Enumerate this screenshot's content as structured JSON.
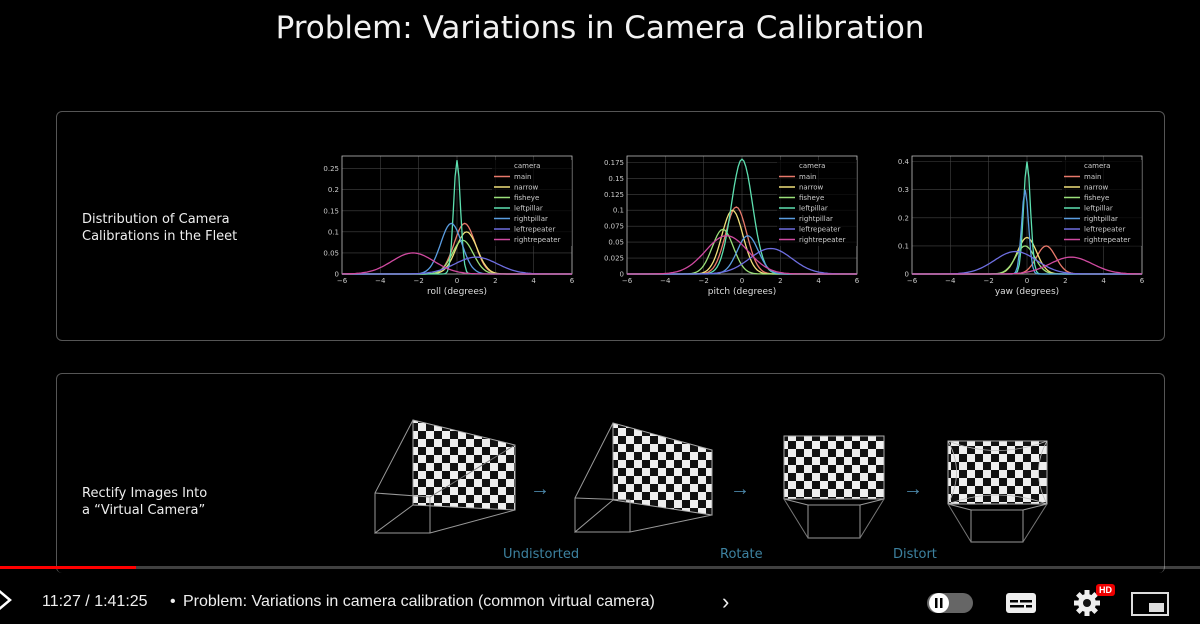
{
  "slide": {
    "title": "Problem: Variations in Camera Calibration",
    "panel1_label_line1": "Distribution of Camera",
    "panel1_label_line2": "Calibrations in the Fleet",
    "panel2_label_line1": "Rectify Images Into",
    "panel2_label_line2": "a “Virtual Camera”",
    "step_labels": [
      "Undistorted",
      "Rotate",
      "Distort"
    ]
  },
  "chart_data": [
    {
      "type": "line",
      "xlabel": "roll (degrees)",
      "xlim": [
        -6,
        6
      ],
      "ylim": [
        0,
        0.28
      ],
      "xticks": [
        -6,
        -4,
        -2,
        0,
        2,
        4,
        6
      ],
      "yticks": [
        0.0,
        0.05,
        0.1,
        0.15,
        0.2,
        0.25
      ],
      "legend_title": "camera",
      "legend_position": "top-right",
      "series": [
        {
          "name": "main",
          "color": "#e8796b",
          "peak": {
            "x": 0.4,
            "y": 0.12
          }
        },
        {
          "name": "narrow",
          "color": "#f0e07a",
          "peak": {
            "x": 0.5,
            "y": 0.1
          }
        },
        {
          "name": "fisheye",
          "color": "#9be07a",
          "peak": {
            "x": 0.3,
            "y": 0.08
          }
        },
        {
          "name": "leftpillar",
          "color": "#5de0b0",
          "peak": {
            "x": 0.0,
            "y": 0.27
          }
        },
        {
          "name": "rightpillar",
          "color": "#5a9de0",
          "peak": {
            "x": -0.3,
            "y": 0.12
          }
        },
        {
          "name": "leftrepeater",
          "color": "#6e6ee0",
          "peak": {
            "x": 1.0,
            "y": 0.04
          }
        },
        {
          "name": "rightrepeater",
          "color": "#d04aa0",
          "peak": {
            "x": -2.3,
            "y": 0.05
          }
        }
      ]
    },
    {
      "type": "line",
      "xlabel": "pitch (degrees)",
      "xlim": [
        -6,
        6
      ],
      "ylim": [
        0,
        0.185
      ],
      "xticks": [
        -6,
        -4,
        -2,
        0,
        2,
        4,
        6
      ],
      "yticks": [
        0.0,
        0.025,
        0.05,
        0.075,
        0.1,
        0.125,
        0.15,
        0.175
      ],
      "legend_title": "camera",
      "legend_position": "top-right",
      "series": [
        {
          "name": "main",
          "color": "#e8796b",
          "peak": {
            "x": -0.3,
            "y": 0.105
          }
        },
        {
          "name": "narrow",
          "color": "#f0e07a",
          "peak": {
            "x": -0.5,
            "y": 0.1
          }
        },
        {
          "name": "fisheye",
          "color": "#9be07a",
          "peak": {
            "x": -1.0,
            "y": 0.07
          }
        },
        {
          "name": "leftpillar",
          "color": "#5de0b0",
          "peak": {
            "x": 0.0,
            "y": 0.18
          }
        },
        {
          "name": "rightpillar",
          "color": "#5a9de0",
          "peak": {
            "x": 0.3,
            "y": 0.06
          }
        },
        {
          "name": "leftrepeater",
          "color": "#6e6ee0",
          "peak": {
            "x": 1.5,
            "y": 0.04
          }
        },
        {
          "name": "rightrepeater",
          "color": "#d04aa0",
          "peak": {
            "x": -0.8,
            "y": 0.06
          }
        }
      ]
    },
    {
      "type": "line",
      "xlabel": "yaw (degrees)",
      "xlim": [
        -6,
        6
      ],
      "ylim": [
        0,
        0.42
      ],
      "xticks": [
        -6,
        -4,
        -2,
        0,
        2,
        4,
        6
      ],
      "yticks": [
        0.0,
        0.1,
        0.2,
        0.3,
        0.4
      ],
      "legend_title": "camera",
      "legend_position": "top-right",
      "series": [
        {
          "name": "main",
          "color": "#e8796b",
          "peak": {
            "x": 1.0,
            "y": 0.1
          }
        },
        {
          "name": "narrow",
          "color": "#f0e07a",
          "peak": {
            "x": 0.0,
            "y": 0.13
          }
        },
        {
          "name": "fisheye",
          "color": "#9be07a",
          "peak": {
            "x": -0.1,
            "y": 0.1
          }
        },
        {
          "name": "leftpillar",
          "color": "#5de0b0",
          "peak": {
            "x": 0.0,
            "y": 0.4
          }
        },
        {
          "name": "rightpillar",
          "color": "#5a9de0",
          "peak": {
            "x": -0.1,
            "y": 0.3
          }
        },
        {
          "name": "leftrepeater",
          "color": "#6e6ee0",
          "peak": {
            "x": -0.6,
            "y": 0.08
          }
        },
        {
          "name": "rightrepeater",
          "color": "#d04aa0",
          "peak": {
            "x": 2.3,
            "y": 0.06
          }
        }
      ]
    }
  ],
  "player": {
    "time": "11:27 / 1:41:25",
    "separator": "•",
    "chapter": "Problem: Variations in camera calibration (common virtual camera)",
    "chevron": "›",
    "progress_fraction": 0.113,
    "hd_badge": "HD",
    "icons": [
      "play-icon",
      "pause-icon",
      "subtitles-icon",
      "settings-gear-icon",
      "miniplayer-icon"
    ]
  }
}
